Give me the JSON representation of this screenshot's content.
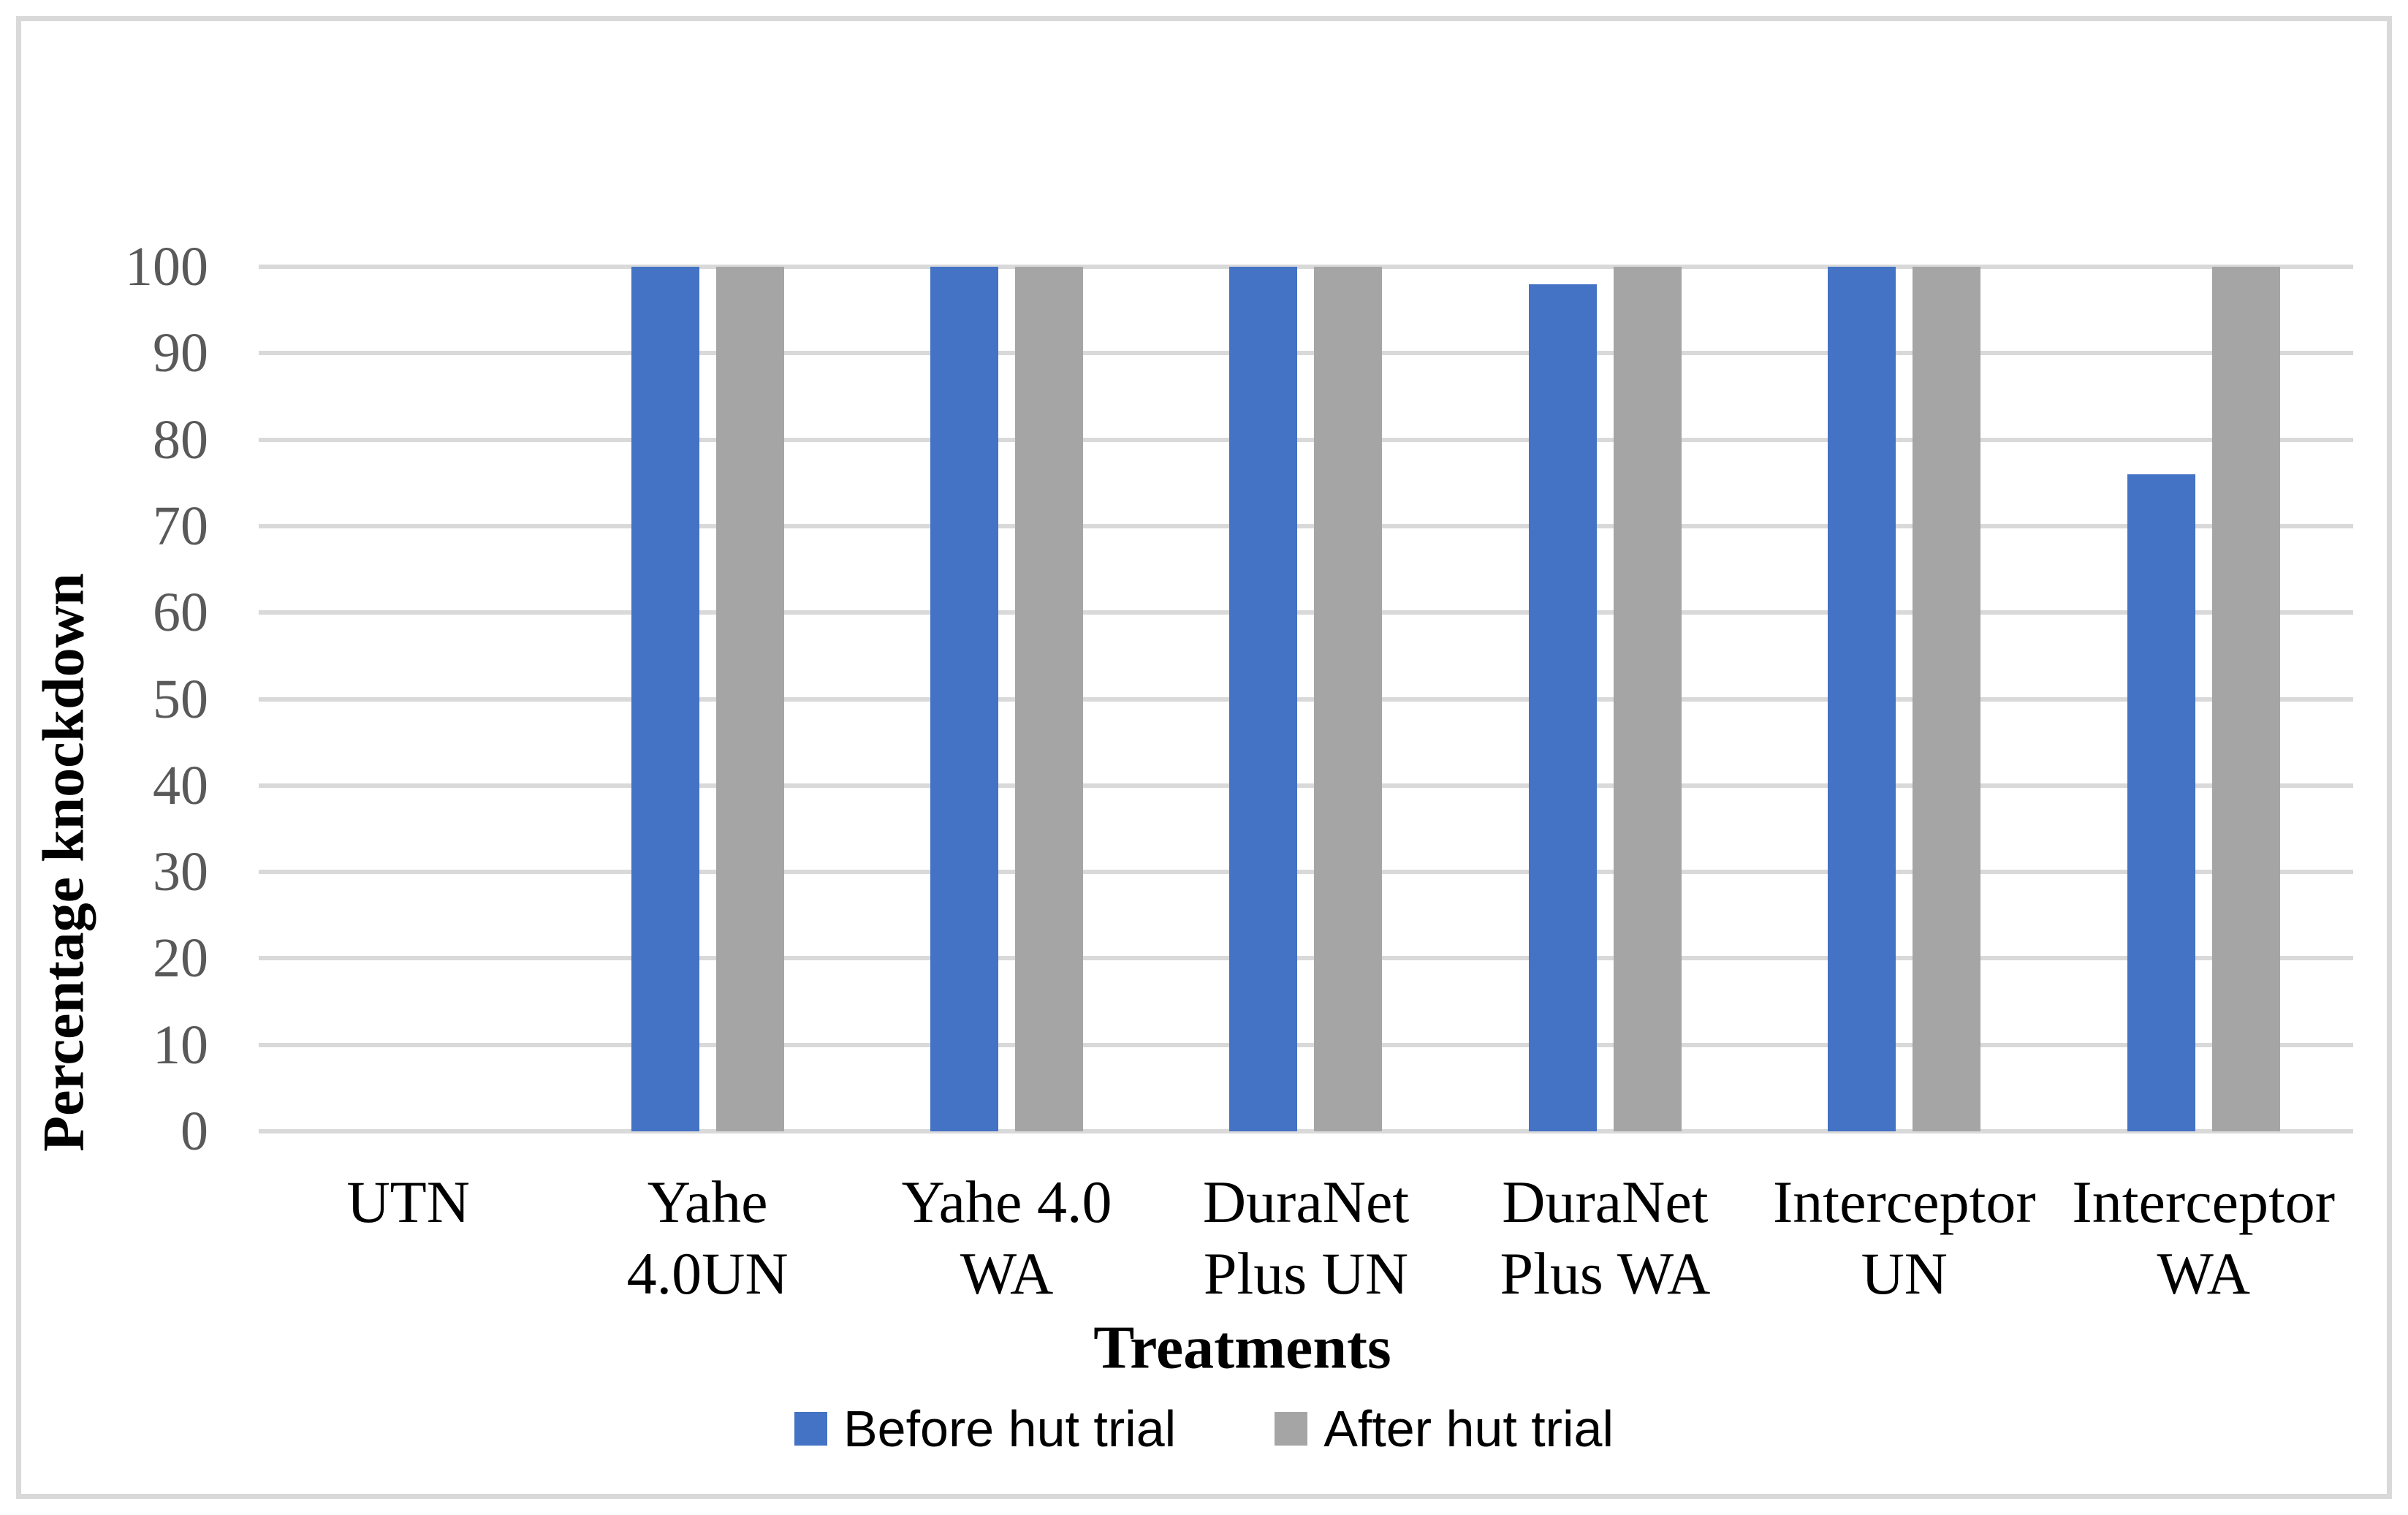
{
  "page": {
    "background": "#FFFFFF",
    "border_color": "#D9D9D9"
  },
  "chart_data": {
    "type": "bar",
    "categories": [
      "UTN",
      "Yahe\n4.0UN",
      "Yahe 4.0\nWA",
      "DuraNet\nPlus UN",
      "DuraNet\nPlus WA",
      "Interceptor\nUN",
      "Interceptor\nWA"
    ],
    "series": [
      {
        "name": "Before hut trial",
        "color": "#4472C4",
        "values": [
          0,
          100,
          100,
          100,
          98,
          100,
          76
        ]
      },
      {
        "name": "After hut trial",
        "color": "#A5A5A5",
        "values": [
          0,
          100,
          100,
          100,
          100,
          100,
          100
        ]
      }
    ],
    "xlabel": "Treatments",
    "ylabel": "Percentage knockdown",
    "ylim": [
      0,
      100
    ],
    "yticks": [
      100,
      90,
      80,
      70,
      60,
      50,
      40,
      30,
      20,
      10,
      0
    ],
    "grid": true,
    "legend_position": "bottom",
    "colors": {
      "gridline": "#D9D9D9",
      "tick_label": "#595959",
      "axis_title": "#000000",
      "legend_text": "#000000"
    }
  }
}
